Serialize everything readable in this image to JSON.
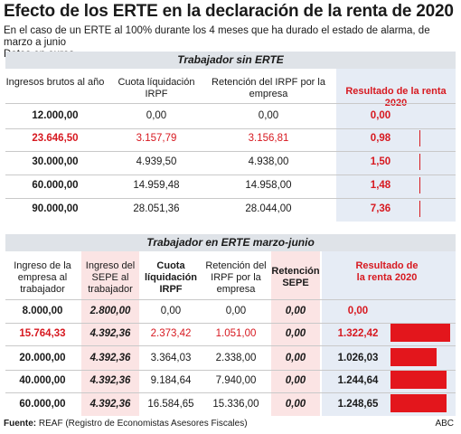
{
  "title": "Efecto de los ERTE en la declaración de la renta de 2020",
  "subtitle_line1": "En el caso de un ERTE al 100% durante los 4 meses que ha durado el estado de alarma, de marzo a junio",
  "subtitle_line2": "Datos en euros",
  "footer_label": "Fuente:",
  "footer_source": "REAF (Registro de Economistas Asesores Fiscales)",
  "brand": "ABC",
  "colors": {
    "accent_red": "#d71920",
    "highlight_blue": "#e6ecf5",
    "highlight_pink": "#fbe4e4",
    "section_gray": "#dfe3e8"
  },
  "chart_data": [
    {
      "type": "table",
      "title": "Trabajador sin ERTE",
      "headers": [
        "Ingresos brutos al año",
        "Cuota líquidación IRPF",
        "Retención del IRPF por la empresa",
        "Resultado de la renta 2020"
      ],
      "rows": [
        [
          "12.000,00",
          "0,00",
          "0,00",
          "0,00"
        ],
        [
          "23.646,50",
          "3.157,79",
          "3.156,81",
          "0,98"
        ],
        [
          "30.000,00",
          "4.939,50",
          "4.938,00",
          "1,50"
        ],
        [
          "60.000,00",
          "14.959,48",
          "14.958,00",
          "1,48"
        ],
        [
          "90.000,00",
          "28.051,36",
          "28.044,00",
          "7,36"
        ]
      ],
      "result_values": [
        0.0,
        0.98,
        1.5,
        1.48,
        7.36
      ],
      "highlight_row": 1
    },
    {
      "type": "table",
      "title": "Trabajador en ERTE marzo-junio",
      "headers": [
        "Ingreso de la empresa al trabajador",
        "Ingreso del SEPE al trabajador",
        "Cuota líquidación IRPF",
        "Retención del IRPF por la empresa",
        "Retención SEPE",
        "Resultado de la renta 2020"
      ],
      "rows": [
        [
          "8.000,00",
          "2.800,00",
          "0,00",
          "0,00",
          "0,00",
          "0,00"
        ],
        [
          "15.764,33",
          "4.392,36",
          "2.373,42",
          "1.051,00",
          "0,00",
          "1.322,42"
        ],
        [
          "20.000,00",
          "4.392,36",
          "3.364,03",
          "2.338,00",
          "0,00",
          "1.026,03"
        ],
        [
          "40.000,00",
          "4.392,36",
          "9.184,64",
          "7.940,00",
          "0,00",
          "1.244,64"
        ],
        [
          "60.000,00",
          "4.392,36",
          "16.584,65",
          "15.336,00",
          "0,00",
          "1.248,65"
        ]
      ],
      "result_values": [
        0.0,
        1322.42,
        1026.03,
        1244.64,
        1248.65
      ],
      "highlight_row": 1
    }
  ]
}
